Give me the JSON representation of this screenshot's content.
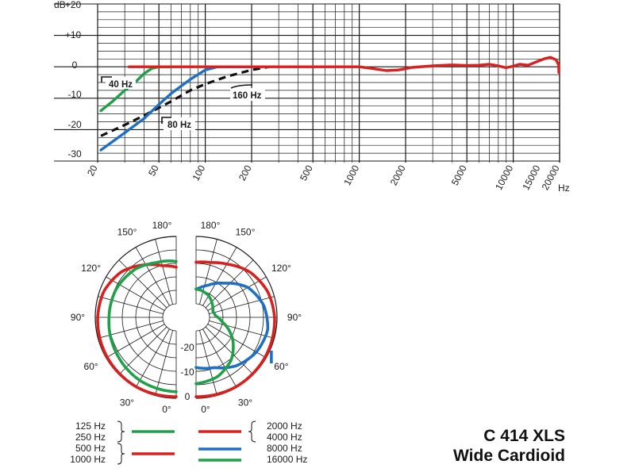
{
  "title": "C 414 XLS",
  "subtitle": "Wide Cardioid",
  "colors": {
    "red": "#d8201f",
    "green": "#21a04a",
    "blue": "#1f6fc2",
    "black": "#111111",
    "grid": "#1a1a1a"
  },
  "chart_data": [
    {
      "type": "line",
      "x_scale": "log",
      "xlim": [
        20,
        20000
      ],
      "ylim": [
        -30,
        20
      ],
      "ylabel_unit": "dB",
      "xlabel_unit": "Hz",
      "x_tick_labels": [
        "20",
        "50",
        "100",
        "200",
        "500",
        "1000",
        "2000",
        "5000",
        "10000",
        "15000",
        "20000"
      ],
      "y_tick_labels": [
        "+20",
        "+10",
        "0",
        "-10",
        "-20",
        "-30"
      ],
      "annotations": [
        "40 Hz",
        "80 Hz",
        "160 Hz"
      ],
      "series": [
        {
          "color": "red",
          "style": "solid",
          "points": [
            [
              32,
              0
            ],
            [
              50,
              0
            ],
            [
              100,
              0
            ],
            [
              200,
              0
            ],
            [
              500,
              0
            ],
            [
              800,
              0
            ],
            [
              1000,
              0
            ],
            [
              1200,
              -0.5
            ],
            [
              1500,
              -1.2
            ],
            [
              1800,
              -1
            ],
            [
              2200,
              -0.2
            ],
            [
              3000,
              0.3
            ],
            [
              4000,
              0.6
            ],
            [
              5000,
              0.4
            ],
            [
              6000,
              0.5
            ],
            [
              7000,
              0.8
            ],
            [
              8000,
              0.3
            ],
            [
              9000,
              -0.3
            ],
            [
              10000,
              0.2
            ],
            [
              11000,
              0.8
            ],
            [
              12500,
              0.5
            ],
            [
              14000,
              1.5
            ],
            [
              16000,
              2.6
            ],
            [
              17500,
              3
            ],
            [
              19000,
              2.2
            ],
            [
              20000,
              0.5
            ],
            [
              21000,
              -1.8
            ]
          ]
        },
        {
          "color": "green",
          "style": "solid",
          "points": [
            [
              21,
              -14
            ],
            [
              25,
              -11
            ],
            [
              30,
              -7.5
            ],
            [
              35,
              -5
            ],
            [
              40,
              -2.2
            ],
            [
              45,
              -0.5
            ],
            [
              50,
              0
            ],
            [
              60,
              0
            ]
          ]
        },
        {
          "color": "blue",
          "style": "solid",
          "points": [
            [
              21,
              -26.5
            ],
            [
              30,
              -21
            ],
            [
              40,
              -16.5
            ],
            [
              50,
              -12
            ],
            [
              60,
              -8.5
            ],
            [
              80,
              -4
            ],
            [
              100,
              -1
            ],
            [
              120,
              0
            ],
            [
              200,
              0
            ]
          ]
        },
        {
          "color": "black",
          "style": "dashed",
          "points": [
            [
              21,
              -22
            ],
            [
              30,
              -18.5
            ],
            [
              40,
              -15.5
            ],
            [
              60,
              -11
            ],
            [
              80,
              -7.5
            ],
            [
              100,
              -5.5
            ],
            [
              140,
              -3
            ],
            [
              200,
              -1
            ],
            [
              260,
              0
            ]
          ]
        }
      ]
    },
    {
      "type": "polar",
      "angle_labels": [
        "0°",
        "30°",
        "60°",
        "90°",
        "120°",
        "150°",
        "180°"
      ],
      "radial_labels": [
        "-20",
        "-10",
        "0"
      ],
      "left_half": [
        {
          "color": "red",
          "label": "500 Hz / 1000 Hz",
          "shape": "wide cardioid"
        },
        {
          "color": "green",
          "label": "125 Hz / 250 Hz",
          "shape": "wide cardioid"
        }
      ],
      "right_half": [
        {
          "color": "red",
          "label": "2000 Hz / 4000 Hz",
          "shape": "wide cardioid"
        },
        {
          "color": "blue",
          "label": "8000 Hz",
          "shape": "cardioid"
        },
        {
          "color": "green",
          "label": "16000 Hz",
          "shape": "narrow"
        }
      ]
    }
  ],
  "legend": {
    "left": [
      {
        "lines": [
          "125 Hz",
          "250 Hz"
        ],
        "color": "green"
      },
      {
        "lines": [
          "500 Hz",
          "1000 Hz"
        ],
        "color": "red"
      }
    ],
    "right": [
      {
        "lines": [
          "2000 Hz",
          "4000 Hz"
        ],
        "color": "red"
      },
      {
        "lines": [
          "8000 Hz"
        ],
        "color": "blue"
      },
      {
        "lines": [
          "16000 Hz"
        ],
        "color": "green"
      }
    ]
  }
}
